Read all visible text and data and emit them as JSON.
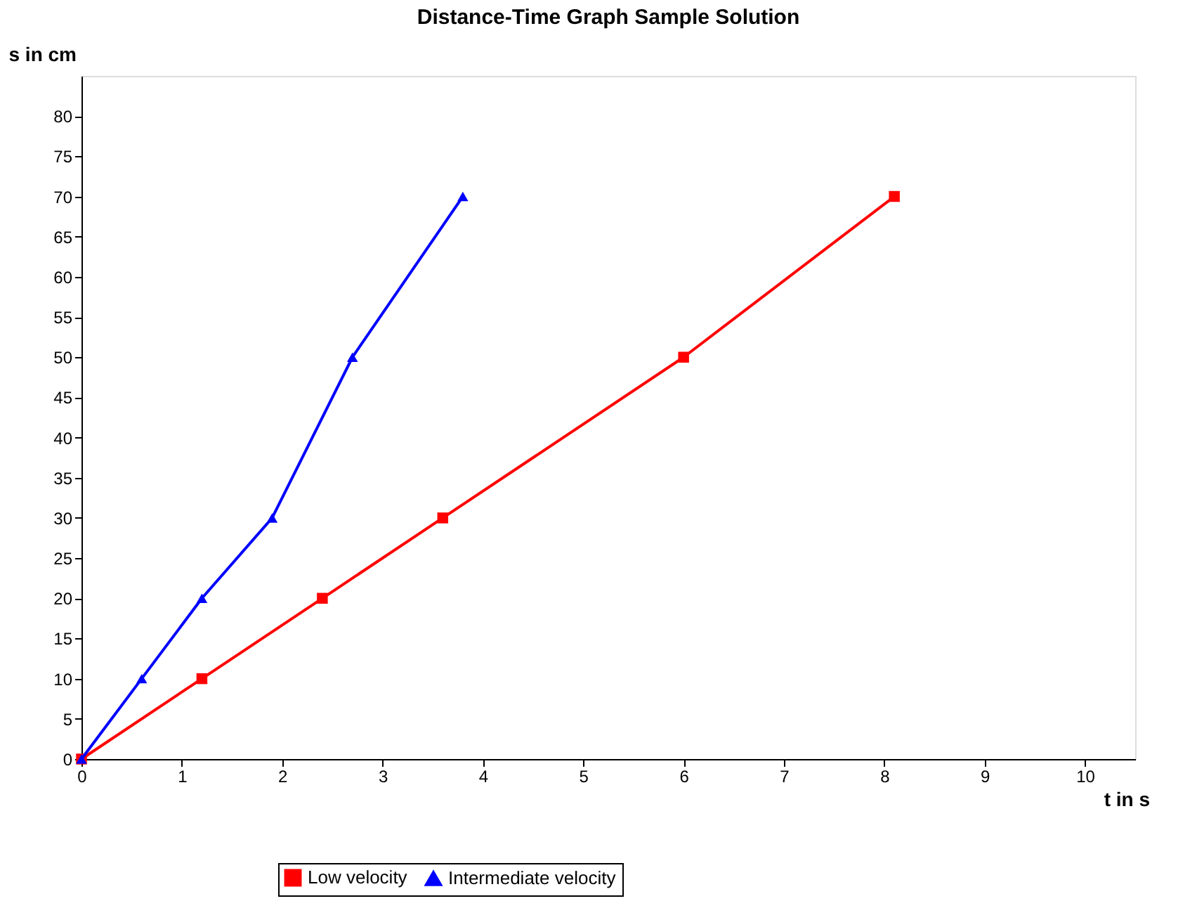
{
  "chart_data": {
    "type": "line",
    "title": "Distance-Time Graph Sample Solution",
    "xlabel": "t in s",
    "ylabel": "s in cm",
    "xlim": [
      0,
      10.5
    ],
    "ylim": [
      0,
      85
    ],
    "xticks": [
      0,
      1,
      2,
      3,
      4,
      5,
      6,
      7,
      8,
      9,
      10
    ],
    "yticks": [
      0,
      5,
      10,
      15,
      20,
      25,
      30,
      35,
      40,
      45,
      50,
      55,
      60,
      65,
      70,
      75,
      80
    ],
    "grid": false,
    "legend": "bottom",
    "line_style": "solid",
    "series": [
      {
        "name": "Low velocity",
        "color": "#ff0000",
        "marker": "square",
        "x": [
          0,
          1.2,
          2.4,
          3.6,
          6,
          8.1
        ],
        "values": [
          0,
          10,
          20,
          30,
          50,
          70
        ]
      },
      {
        "name": "Intermediate velocity",
        "color": "#0000ff",
        "marker": "triangle",
        "x": [
          0,
          0.6,
          1.2,
          1.9,
          2.7,
          3.8
        ],
        "values": [
          0,
          10,
          20,
          30,
          50,
          70
        ]
      }
    ]
  }
}
